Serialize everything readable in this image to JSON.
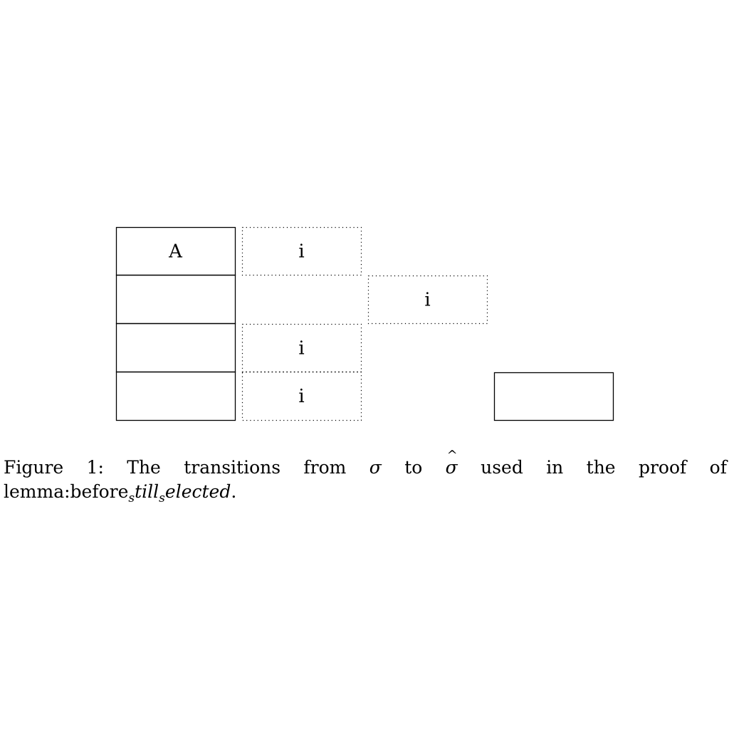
{
  "diagram": {
    "cells": [
      {
        "id": "stack-1",
        "style": "solid",
        "label": "A"
      },
      {
        "id": "stack-2",
        "style": "solid",
        "label": ""
      },
      {
        "id": "stack-3",
        "style": "solid",
        "label": ""
      },
      {
        "id": "stack-4",
        "style": "solid",
        "label": ""
      },
      {
        "id": "dotted-row1",
        "style": "dotted",
        "label": "i"
      },
      {
        "id": "dotted-row2-shifted",
        "style": "dotted",
        "label": "i"
      },
      {
        "id": "dotted-row3",
        "style": "dotted",
        "label": "i"
      },
      {
        "id": "dotted-row4",
        "style": "dotted",
        "label": "i"
      },
      {
        "id": "solid-right",
        "style": "solid",
        "label": ""
      }
    ]
  },
  "caption": {
    "words": [
      "Figure",
      "1:",
      "The",
      "transitions",
      "from",
      "σ",
      "to",
      "σ",
      "used",
      "in",
      "the",
      "proof",
      "of"
    ],
    "line2_prefix": "lemma:before",
    "line2_sub1": "s",
    "line2_mid": "till",
    "line2_sub2": "s",
    "line2_suffix": "elected",
    "line2_end": "."
  }
}
